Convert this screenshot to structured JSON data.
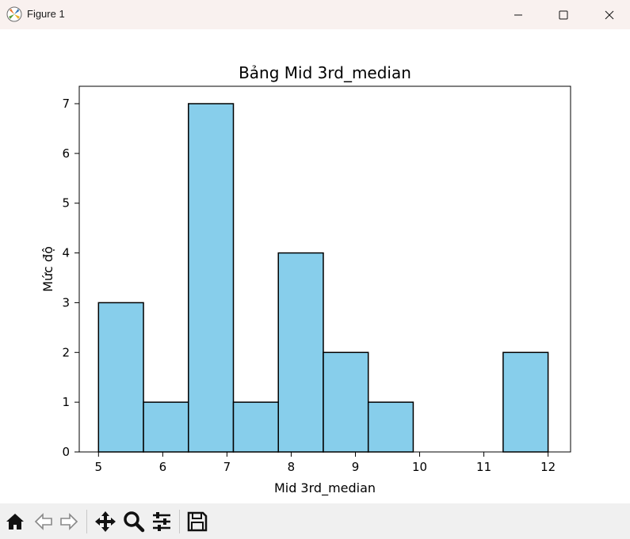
{
  "window": {
    "title": "Figure 1",
    "icons": [
      "matplotlib-icon",
      "minimize-icon",
      "maximize-icon",
      "close-icon"
    ]
  },
  "chart_data": {
    "type": "histogram",
    "title": "Bảng Mid 3rd_median",
    "xlabel": "Mid 3rd_median",
    "ylabel": "Mức độ",
    "bin_edges": [
      5.0,
      5.7,
      6.4,
      7.1,
      7.8,
      8.5,
      9.2,
      9.9,
      10.6,
      11.3,
      12.0
    ],
    "values": [
      3,
      1,
      7,
      1,
      4,
      2,
      1,
      0,
      0,
      2
    ],
    "xlim": [
      4.7,
      12.35
    ],
    "ylim": [
      0,
      7.35
    ],
    "xticks": [
      5,
      6,
      7,
      8,
      9,
      10,
      11,
      12
    ],
    "yticks": [
      0,
      1,
      2,
      3,
      4,
      5,
      6,
      7
    ],
    "bar_color": "#87ceeb",
    "edge_color": "#000000",
    "grid": false
  },
  "toolbar": {
    "icons": [
      "home-icon",
      "back-icon",
      "forward-icon",
      "pan-icon",
      "zoom-icon",
      "configure-subplots-icon",
      "save-icon"
    ]
  }
}
